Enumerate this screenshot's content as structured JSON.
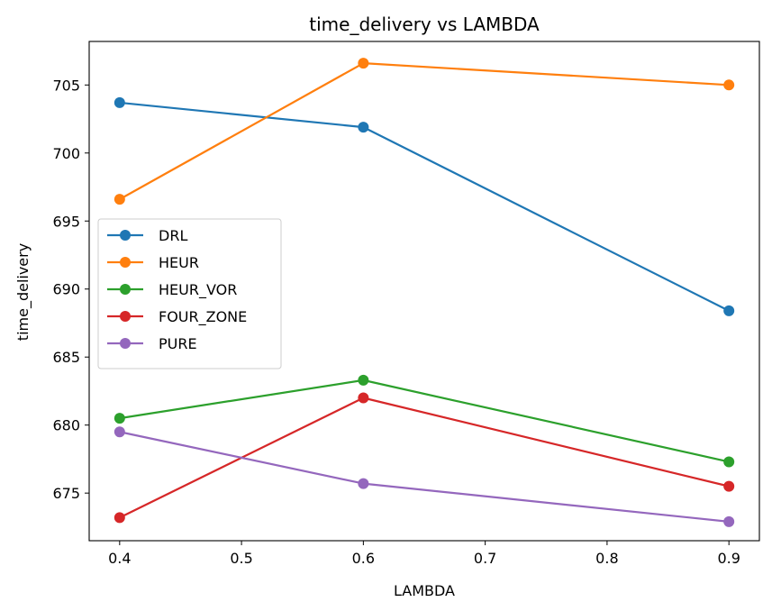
{
  "chart_data": {
    "type": "line",
    "title": "time_delivery vs LAMBDA",
    "xlabel": "LAMBDA",
    "ylabel": "time_delivery",
    "xlim": [
      0.375,
      0.925
    ],
    "ylim": [
      671.5,
      708.2
    ],
    "xticks": [
      0.4,
      0.5,
      0.6,
      0.7,
      0.8,
      0.9
    ],
    "xtick_labels": [
      "0.4",
      "0.5",
      "0.6",
      "0.7",
      "0.8",
      "0.9"
    ],
    "yticks": [
      675,
      680,
      685,
      690,
      695,
      700,
      705
    ],
    "ytick_labels": [
      "675",
      "680",
      "685",
      "690",
      "695",
      "700",
      "705"
    ],
    "grid": false,
    "legend_position": "center-left",
    "x": [
      0.4,
      0.6,
      0.9
    ],
    "series": [
      {
        "name": "DRL",
        "color": "#1f77b4",
        "values": [
          703.7,
          701.9,
          688.4
        ]
      },
      {
        "name": "HEUR",
        "color": "#ff7f0e",
        "values": [
          696.6,
          706.6,
          705.0
        ]
      },
      {
        "name": "HEUR_VOR",
        "color": "#2ca02c",
        "values": [
          680.5,
          683.3,
          677.3
        ]
      },
      {
        "name": "FOUR_ZONE",
        "color": "#d62728",
        "values": [
          673.2,
          682.0,
          675.5
        ]
      },
      {
        "name": "PURE",
        "color": "#9467bd",
        "values": [
          679.5,
          675.7,
          672.9
        ]
      }
    ]
  }
}
